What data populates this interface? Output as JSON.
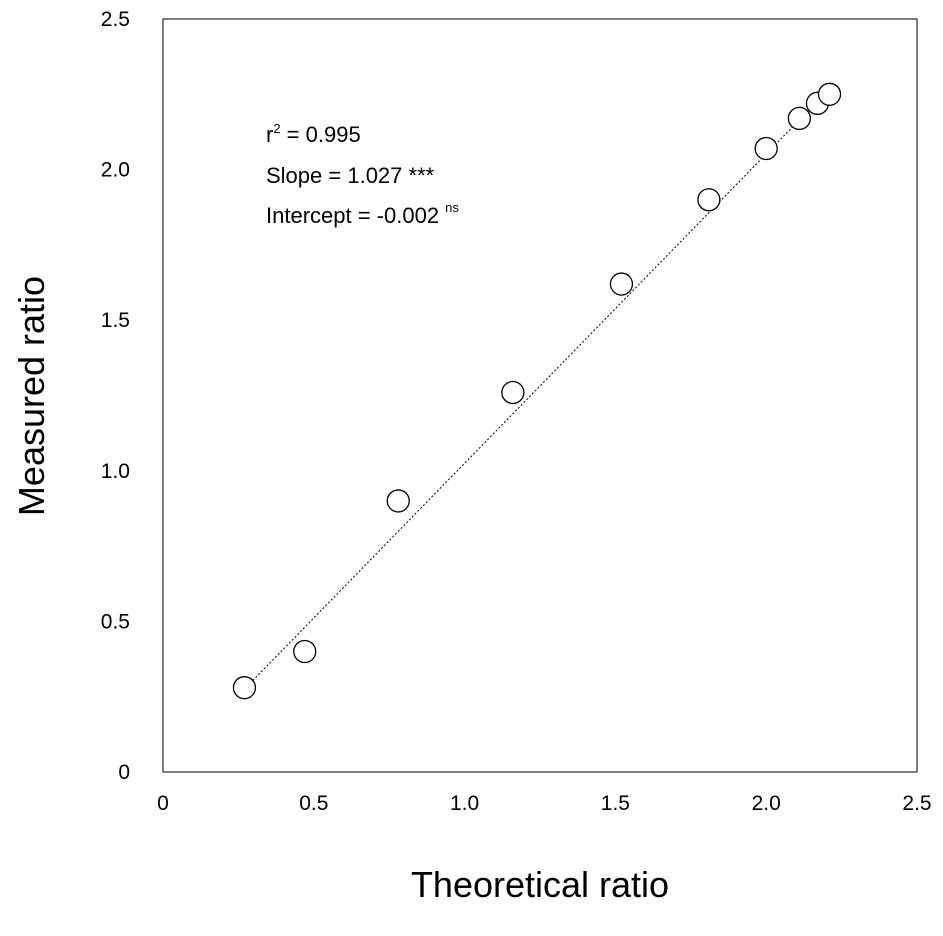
{
  "chart_data": {
    "type": "scatter",
    "xlabel": "Theoretical ratio",
    "ylabel": "Measured ratio",
    "xlim": [
      0,
      2.5
    ],
    "ylim": [
      0,
      2.5
    ],
    "x_ticks": [
      "0",
      "0.5",
      "1.0",
      "1.5",
      "2.0",
      "2.5"
    ],
    "y_ticks": [
      "0",
      "0.5",
      "1.0",
      "1.5",
      "2.0",
      "2.5"
    ],
    "grid": false,
    "legend": "none",
    "marker": "open-circle",
    "series": [
      {
        "points": [
          {
            "x": 0.27,
            "y": 0.28
          },
          {
            "x": 0.47,
            "y": 0.4
          },
          {
            "x": 0.78,
            "y": 0.9
          },
          {
            "x": 1.16,
            "y": 1.26
          },
          {
            "x": 1.52,
            "y": 1.62
          },
          {
            "x": 1.81,
            "y": 1.9
          },
          {
            "x": 2.0,
            "y": 2.07
          },
          {
            "x": 2.11,
            "y": 2.17
          },
          {
            "x": 2.17,
            "y": 2.22
          },
          {
            "x": 2.21,
            "y": 2.25
          }
        ]
      }
    ],
    "fit_line": {
      "slope": 1.027,
      "intercept": -0.002,
      "x_range": [
        0.27,
        2.21
      ],
      "style": "dotted"
    },
    "annotations": {
      "r2_base": "r",
      "r2_sup": "2",
      "r2_value": " = 0.995",
      "slope": "Slope = 1.027 ***",
      "intercept": "Intercept = -0.002 ",
      "intercept_sup": "ns"
    }
  }
}
